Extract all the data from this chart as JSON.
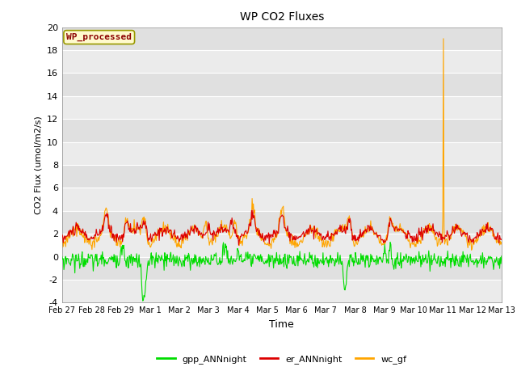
{
  "title": "WP CO2 Fluxes",
  "ylabel": "CO2 Flux (umol/m2/s)",
  "xlabel": "Time",
  "ylim": [
    -4,
    20
  ],
  "yticks": [
    -4,
    -2,
    0,
    2,
    4,
    6,
    8,
    10,
    12,
    14,
    16,
    18,
    20
  ],
  "annotation_text": "WP_processed",
  "annotation_color": "#8B0000",
  "annotation_bg": "#FFFACD",
  "annotation_border": "#999900",
  "bg_color_light": "#EBEBEB",
  "bg_color_dark": "#E0E0E0",
  "grid_color": "#FFFFFF",
  "series": {
    "gpp_ANNnight": {
      "color": "#00DD00",
      "lw": 0.8
    },
    "er_ANNnight": {
      "color": "#DD0000",
      "lw": 0.8
    },
    "wc_gf": {
      "color": "#FFA500",
      "lw": 0.8
    }
  },
  "xtick_labels": [
    "Feb 27",
    "Feb 28",
    "Feb 29",
    "Mar 1",
    "Mar 2",
    "Mar 3",
    "Mar 4",
    "Mar 5",
    "Mar 6",
    "Mar 7",
    "Mar 8",
    "Mar 9",
    "Mar 10",
    "Mar 11",
    "Mar 12",
    "Mar 13"
  ],
  "n_days": 15,
  "points_per_day": 48
}
